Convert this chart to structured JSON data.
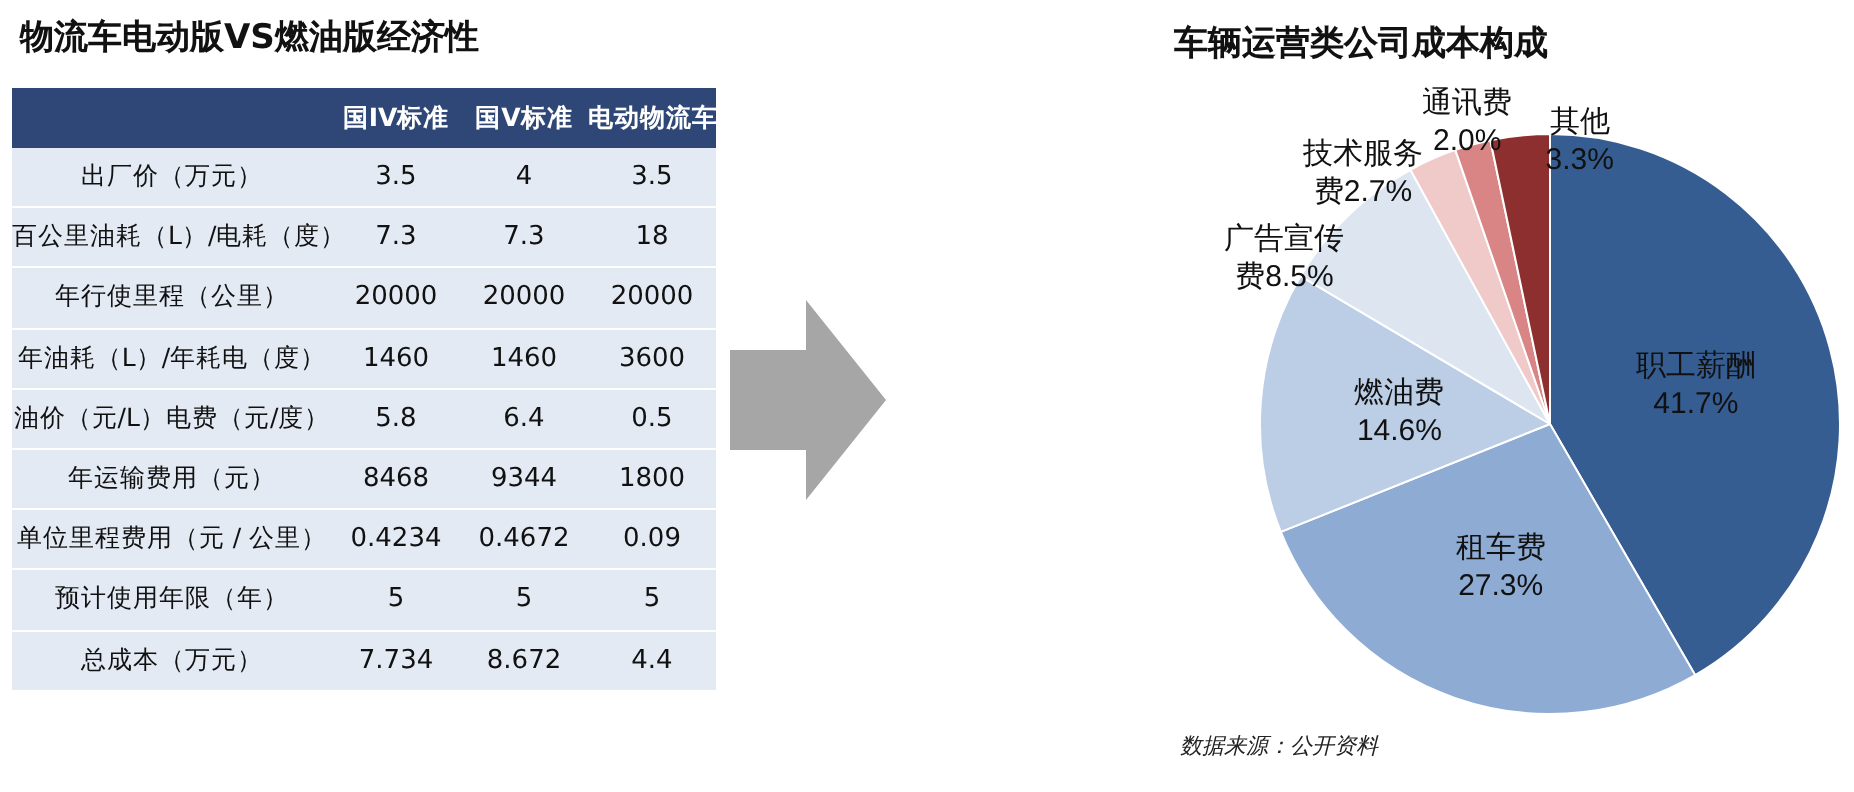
{
  "chart_data": [
    {
      "type": "other",
      "title": "物流车电动版VS燃油版经济性",
      "data_labels": true,
      "categories": [
        "出厂价（万元）",
        "百公里油耗（L）/电耗（度）",
        "年行使里程（公里）",
        "年油耗（L）/年耗电（度）",
        "油价（元/L）电费（元/度）",
        "年运输费用（元）",
        "单位里程费用（元 / 公里）",
        "预计使用年限（年）",
        "总成本（万元）"
      ],
      "series": [
        {
          "name": "国IV标准",
          "values": [
            3.5,
            7.3,
            20000,
            1460,
            5.8,
            8468,
            0.4234,
            5,
            7.734
          ]
        },
        {
          "name": "国V标准",
          "values": [
            4,
            7.3,
            20000,
            1460,
            6.4,
            9344,
            0.4672,
            5,
            8.672
          ]
        },
        {
          "name": "电动物流车",
          "values": [
            3.5,
            18,
            20000,
            3600,
            0.5,
            1800,
            0.09,
            5,
            4.4
          ]
        }
      ]
    },
    {
      "type": "pie",
      "title": "车辆运营类公司成本构成",
      "categories": [
        "职工薪酬",
        "租车费",
        "燃油费",
        "广告宣传费",
        "技术服务费",
        "通讯费",
        "其他"
      ],
      "values": [
        41.7,
        27.3,
        14.6,
        8.5,
        2.7,
        2.0,
        3.3
      ],
      "value_labels": [
        "41.7%",
        "27.3%",
        "14.6%",
        "8.5%",
        "2.7%",
        "2.0%",
        "3.3%"
      ],
      "colors": [
        "#365d91",
        "#8eabd4",
        "#bccde6",
        "#dde5f1",
        "#f0c9c9",
        "#d98585",
        "#8e2f2f"
      ],
      "annotations": [
        "数据来源：公开资料"
      ]
    }
  ]
}
